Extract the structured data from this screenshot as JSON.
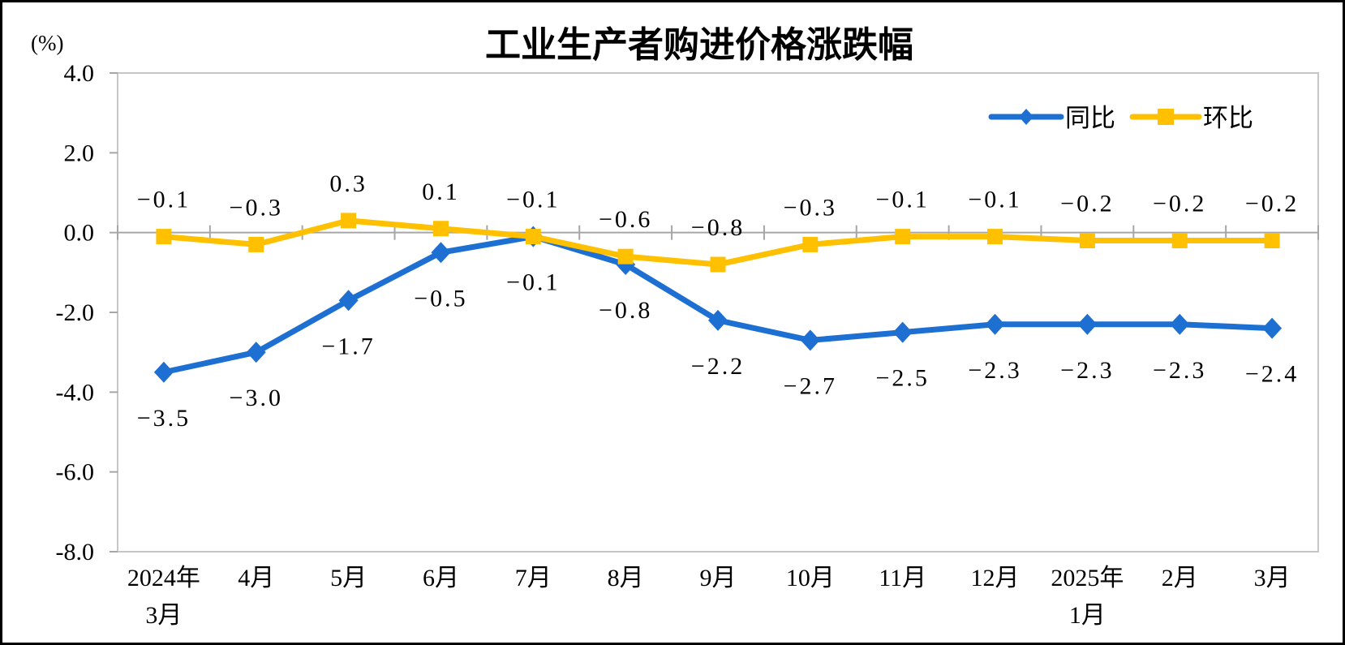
{
  "chart": {
    "title": "工业生产者购进价格涨跌幅",
    "unit_label": "(%)"
  },
  "chart_data": {
    "type": "line",
    "title": "工业生产者购进价格涨跌幅",
    "unit_label": "(%)",
    "categories": [
      "2024年\n3月",
      "4月",
      "5月",
      "6月",
      "7月",
      "8月",
      "9月",
      "10月",
      "11月",
      "12月",
      "2025年\n1月",
      "2月",
      "3月"
    ],
    "series": [
      {
        "name": "同比",
        "color": "#1D6FD2",
        "marker": "diamond",
        "label_position": "below",
        "values": [
          -3.5,
          -3.0,
          -1.7,
          -0.5,
          -0.1,
          -0.8,
          -2.2,
          -2.7,
          -2.5,
          -2.3,
          -2.3,
          -2.3,
          -2.4
        ]
      },
      {
        "name": "环比",
        "color": "#FFC000",
        "marker": "square",
        "label_position": "above",
        "values": [
          -0.1,
          -0.3,
          0.3,
          0.1,
          -0.1,
          -0.6,
          -0.8,
          -0.3,
          -0.1,
          -0.1,
          -0.2,
          -0.2,
          -0.2
        ]
      }
    ],
    "ylim": [
      -8.0,
      4.0
    ],
    "ytick_step": 2.0,
    "ytick_labels": [
      "4.0",
      "2.0",
      "0.0",
      "-2.0",
      "-4.0",
      "-6.0",
      "-8.0"
    ],
    "grid": false,
    "axis_line_at_zero": true,
    "legend_position": "top-right",
    "colors": {
      "plot_border": "#C6C6C6",
      "axis_line": "#A6A6A6",
      "outer_border": "#000000",
      "background": "#FFFFFF"
    }
  }
}
